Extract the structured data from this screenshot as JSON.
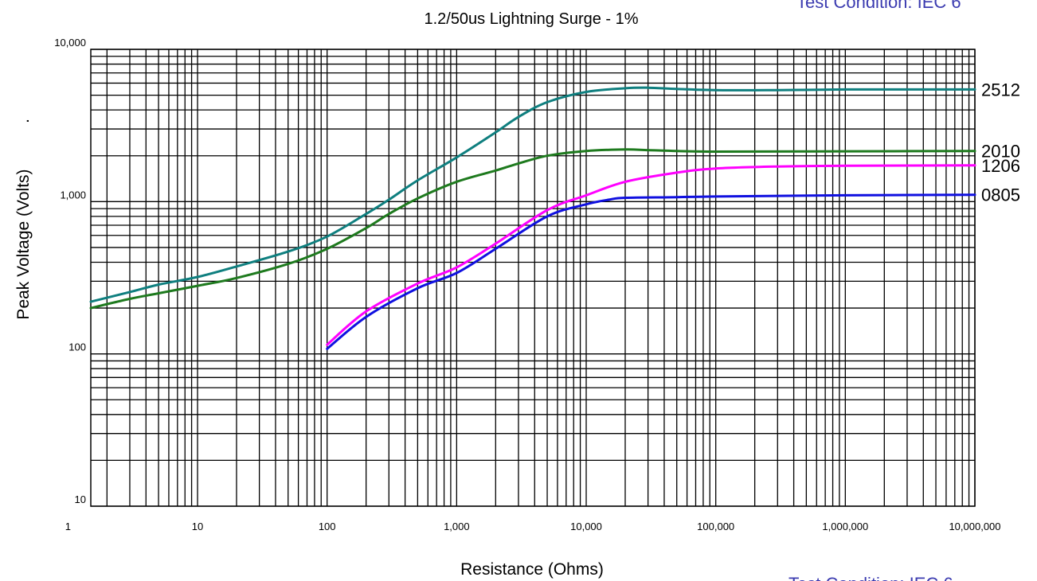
{
  "chart_data": {
    "type": "line",
    "title": "1.2/50us Lightning Surge - 1%",
    "xlabel": "Resistance (Ohms)",
    "ylabel": "Peak Voltage (Volts)",
    "ylabel_suffix": ".",
    "x_scale": "log",
    "y_scale": "log",
    "xlim": [
      1.5,
      10000000
    ],
    "ylim": [
      10,
      10000
    ],
    "grid": true,
    "x_ticks": [
      {
        "value": 1,
        "label": "1"
      },
      {
        "value": 10,
        "label": "10"
      },
      {
        "value": 100,
        "label": "100"
      },
      {
        "value": 1000,
        "label": "1,000"
      },
      {
        "value": 10000,
        "label": "10,000"
      },
      {
        "value": 100000,
        "label": "100,000"
      },
      {
        "value": 1000000,
        "label": "1,000,000"
      },
      {
        "value": 10000000,
        "label": "10,000,000"
      }
    ],
    "y_ticks": [
      {
        "value": 10,
        "label": "10"
      },
      {
        "value": 100,
        "label": "100"
      },
      {
        "value": 1000,
        "label": "1,000"
      },
      {
        "value": 10000,
        "label": "10,000"
      }
    ],
    "series": [
      {
        "name": "2512",
        "color": "#0f7f7f",
        "x": [
          1.5,
          3,
          5,
          10,
          20,
          50,
          100,
          200,
          300,
          500,
          1000,
          2000,
          3000,
          5000,
          10000,
          20000,
          30000,
          50000,
          100000,
          300000,
          1000000,
          10000000
        ],
        "y": [
          220,
          255,
          285,
          320,
          375,
          470,
          590,
          830,
          1030,
          1380,
          1950,
          2850,
          3600,
          4500,
          5250,
          5550,
          5600,
          5500,
          5400,
          5400,
          5450,
          5450
        ]
      },
      {
        "name": "2010",
        "color": "#1e7a1e",
        "x": [
          1.5,
          3,
          5,
          10,
          20,
          50,
          100,
          200,
          300,
          500,
          1000,
          2000,
          3000,
          5000,
          10000,
          20000,
          30000,
          50000,
          100000,
          1000000,
          10000000
        ],
        "y": [
          200,
          230,
          250,
          280,
          315,
          390,
          490,
          670,
          830,
          1050,
          1350,
          1600,
          1780,
          2000,
          2150,
          2200,
          2180,
          2150,
          2130,
          2140,
          2150
        ]
      },
      {
        "name": "1206",
        "color": "#ff00ff",
        "x": [
          100,
          200,
          500,
          1000,
          2000,
          5000,
          10000,
          20000,
          50000,
          100000,
          300000,
          1000000,
          10000000
        ],
        "y": [
          115,
          190,
          290,
          370,
          530,
          880,
          1100,
          1350,
          1550,
          1650,
          1700,
          1720,
          1730
        ]
      },
      {
        "name": "0805",
        "color": "#1010e0",
        "x": [
          100,
          200,
          500,
          1000,
          2000,
          5000,
          10000,
          15000,
          20000,
          50000,
          100000,
          1000000,
          10000000
        ],
        "y": [
          108,
          175,
          270,
          340,
          490,
          800,
          960,
          1030,
          1060,
          1070,
          1080,
          1100,
          1110
        ]
      }
    ]
  },
  "notes": {
    "top_right": "Test Condition: IEC 6",
    "bottom_right": "Test Condition:  IEC 6"
  }
}
